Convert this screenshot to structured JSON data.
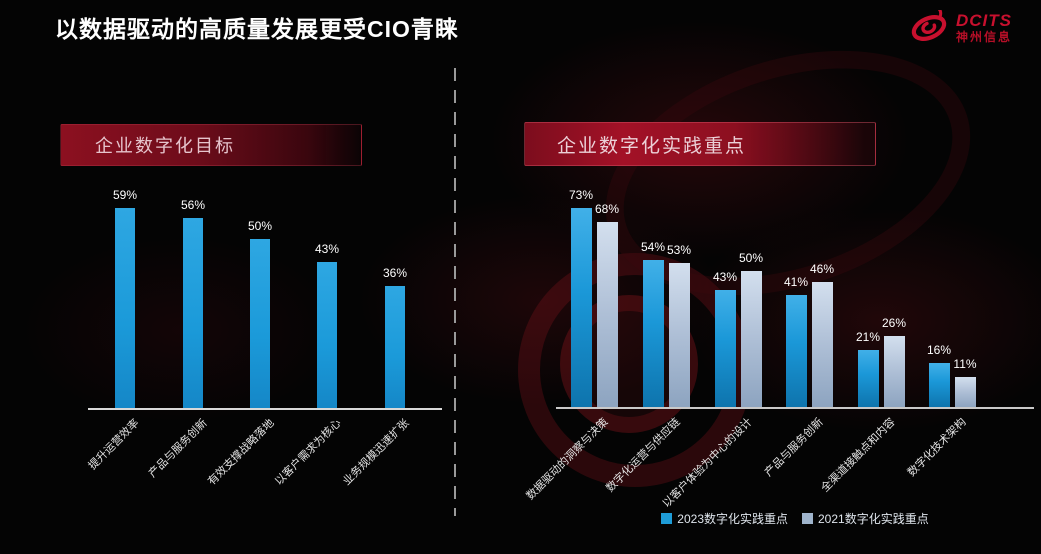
{
  "slide": {
    "title": "以数据驱动的高质量发展更受CIO青睐"
  },
  "logo": {
    "brand": "DCITS",
    "subtitle": "神州信息",
    "color": "#c8102e"
  },
  "panels": {
    "left_header": "企业数字化目标",
    "right_header": "企业数字化实践重点"
  },
  "colors": {
    "bar_2023": "#1d9edd",
    "bar_2021": "#aebfd6",
    "banner_red": "#a31127",
    "axis": "#d9d9d9",
    "background": "#040404"
  },
  "legend": [
    {
      "label": "2023数字化实践重点",
      "color": "#1e9cd7"
    },
    {
      "label": "2021数字化实践重点",
      "color": "#9fb4cc"
    }
  ],
  "chart_data": [
    {
      "type": "bar",
      "title": "企业数字化目标",
      "categories": [
        "提升运营效率",
        "产品与服务创新",
        "有效支撑战略落地",
        "以客户需求为核心",
        "业务规模迅速扩张"
      ],
      "values": [
        59,
        56,
        50,
        43,
        36
      ],
      "unit": "%",
      "xlabel": "",
      "ylabel": "",
      "ylim": [
        0,
        62
      ],
      "grid": false,
      "legend_position": "none"
    },
    {
      "type": "bar",
      "title": "企业数字化实践重点",
      "categories": [
        "数据驱动的洞察与决策",
        "数字化运营与供应链",
        "以客户体验为中心的设计",
        "产品与服务创新",
        "全渠道接触点和内容",
        "数字化技术架构"
      ],
      "series": [
        {
          "name": "2023数字化实践重点",
          "values": [
            73,
            54,
            43,
            41,
            21,
            16
          ]
        },
        {
          "name": "2021数字化实践重点",
          "values": [
            68,
            53,
            50,
            46,
            26,
            11
          ]
        }
      ],
      "unit": "%",
      "xlabel": "",
      "ylabel": "",
      "ylim": [
        0,
        76
      ],
      "grid": false,
      "legend_position": "bottom"
    }
  ]
}
